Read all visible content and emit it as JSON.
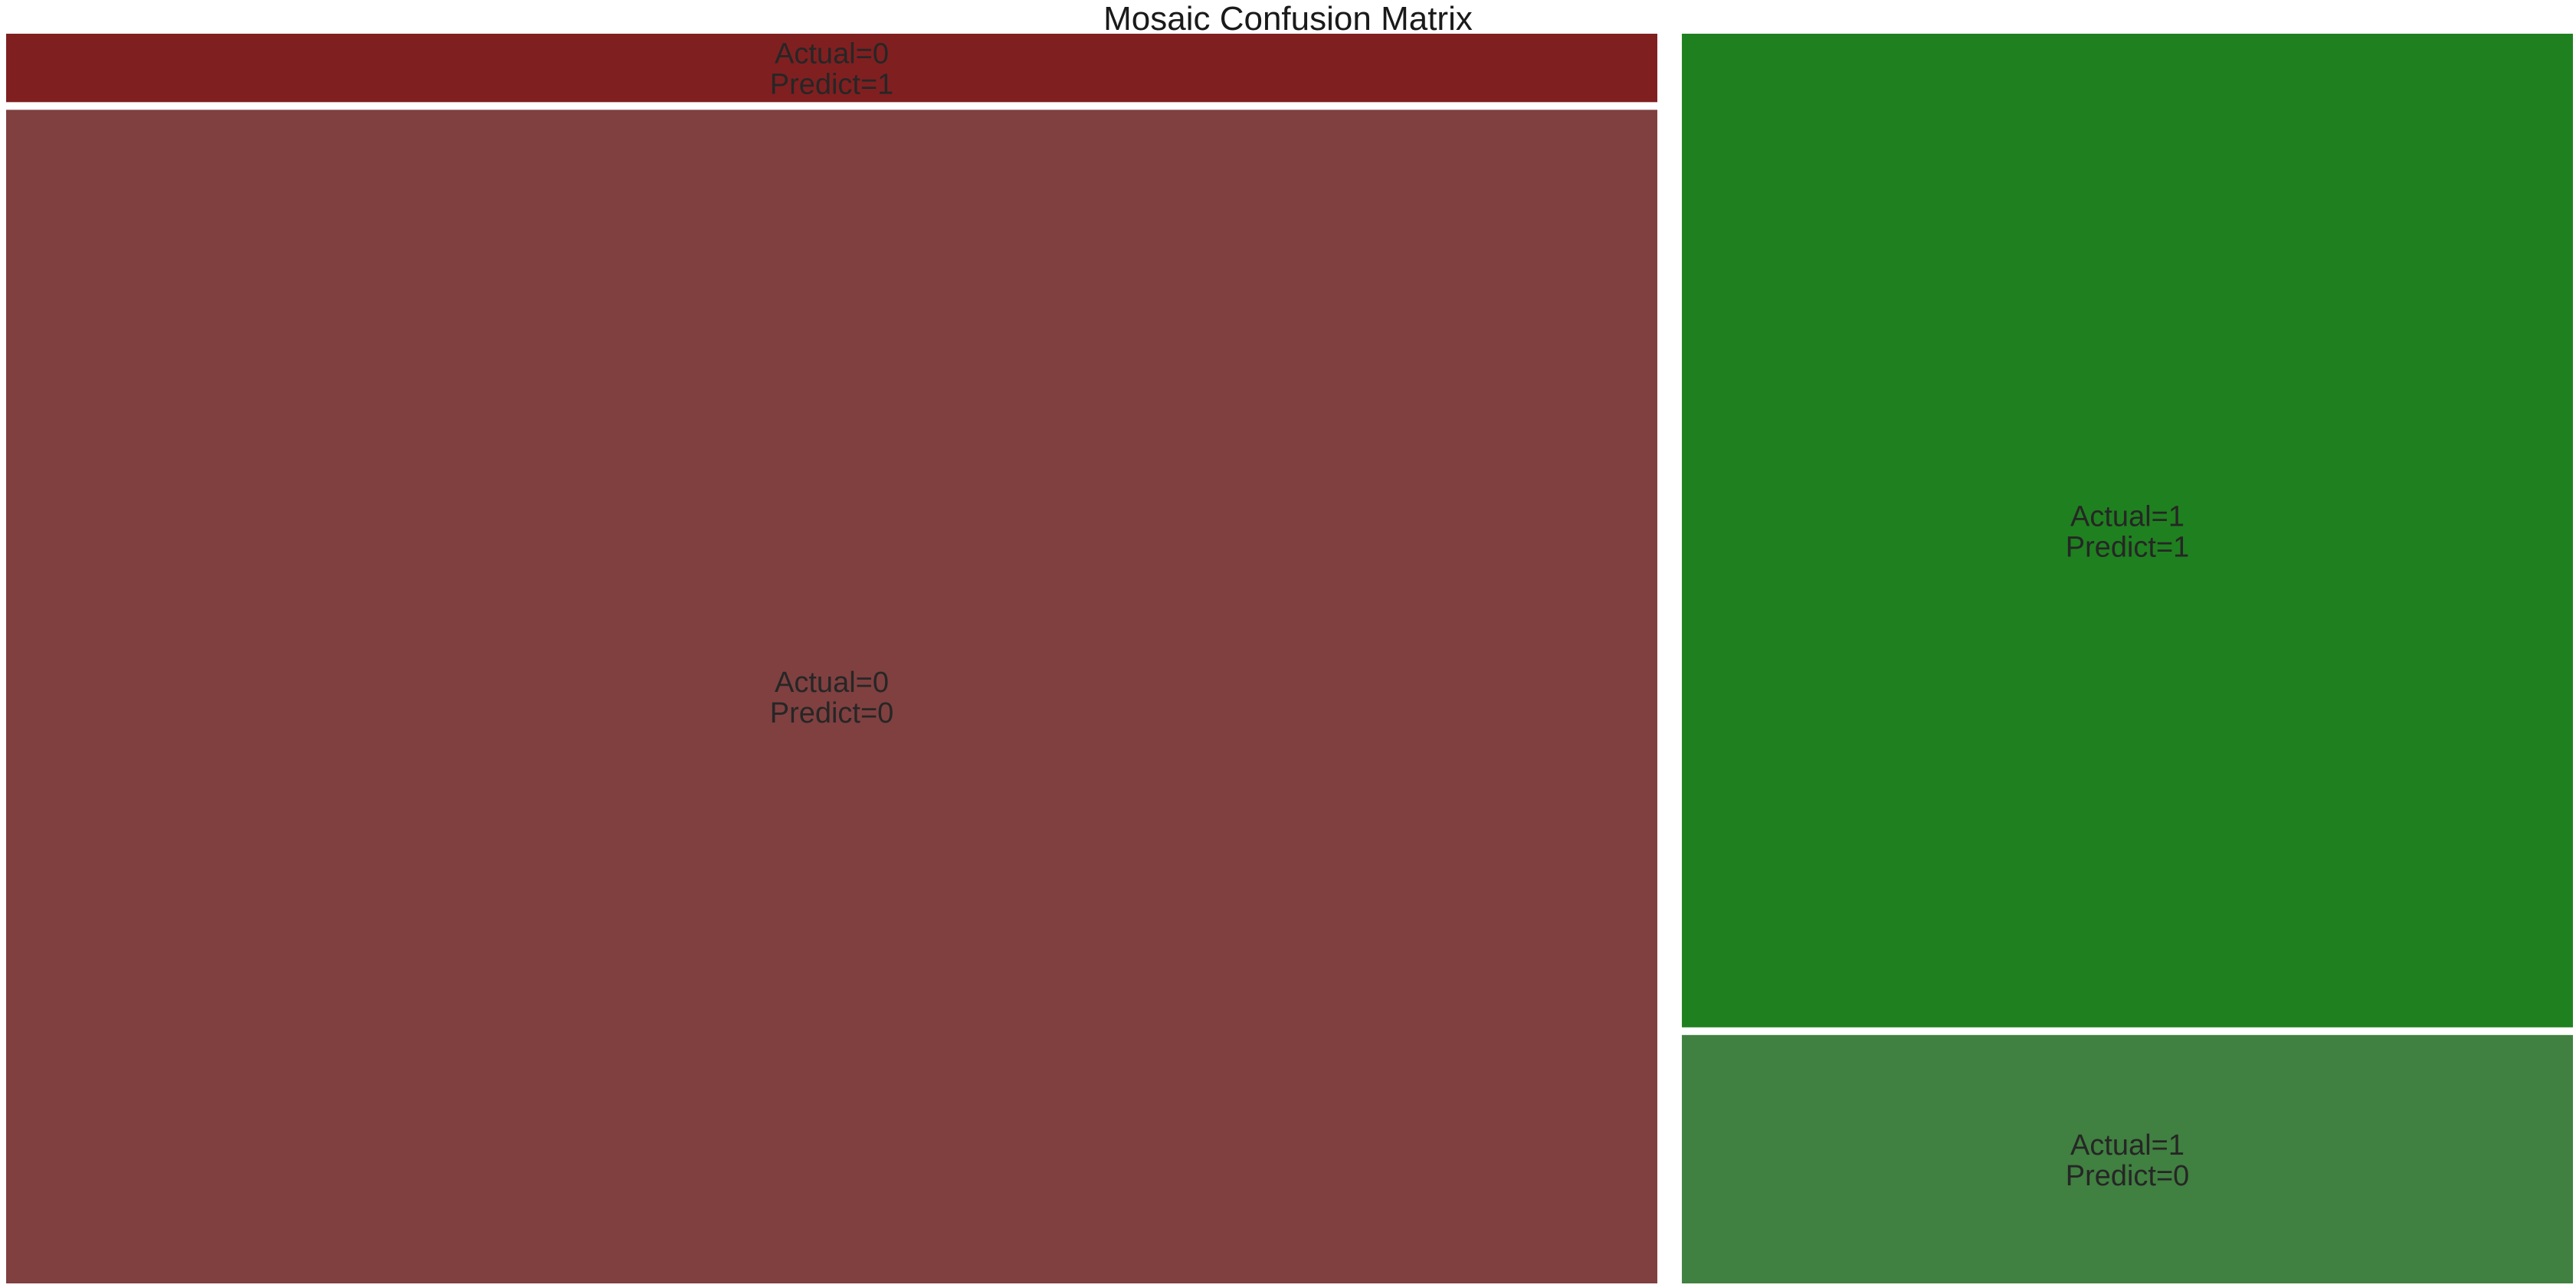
{
  "chart_data": {
    "type": "mosaic",
    "title": "Mosaic Confusion Matrix",
    "columns": [
      {
        "category": "Actual=0",
        "share": 0.6495,
        "tiles": [
          {
            "line1": "Actual=0",
            "line2": "Predict=1",
            "share": 0.0551,
            "color": "#801f20"
          },
          {
            "line1": "Actual=0",
            "line2": "Predict=0",
            "share": 0.9449,
            "color": "#804040"
          }
        ]
      },
      {
        "category": "Actual=1",
        "share": 0.3505,
        "tiles": [
          {
            "line1": "Actual=1",
            "line2": "Predict=1",
            "share": 0.8,
            "color": "#1f801f"
          },
          {
            "line1": "Actual=1",
            "line2": "Predict=0",
            "share": 0.2,
            "color": "#408040"
          }
        ]
      }
    ],
    "legend": "none",
    "grid": false
  }
}
